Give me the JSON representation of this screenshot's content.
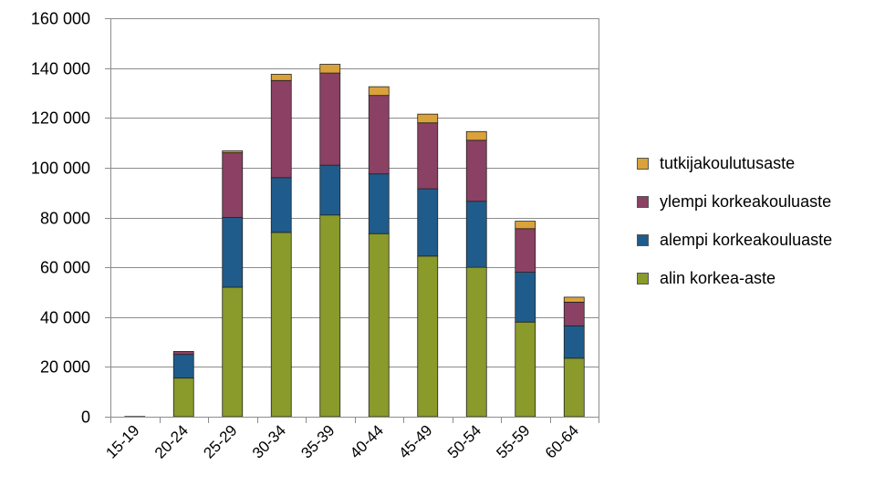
{
  "chart_data": {
    "type": "bar",
    "stacked": true,
    "categories": [
      "15-19",
      "20-24",
      "25-29",
      "30-34",
      "35-39",
      "40-44",
      "45-49",
      "50-54",
      "55-59",
      "60-64"
    ],
    "series": [
      {
        "name": "alin korkea-aste",
        "color": "#8a9a2b",
        "values": [
          100,
          15500,
          52000,
          74000,
          81000,
          73500,
          64500,
          60000,
          38000,
          23500
        ]
      },
      {
        "name": "alempi korkeakouluaste",
        "color": "#1f5c8c",
        "values": [
          0,
          9500,
          28000,
          22000,
          20000,
          24000,
          27000,
          26500,
          20000,
          13000
        ]
      },
      {
        "name": "ylempi korkeakouluaste",
        "color": "#8b4163",
        "values": [
          0,
          1200,
          26000,
          39000,
          37000,
          31500,
          26500,
          24500,
          17500,
          9500
        ]
      },
      {
        "name": "tutkijakoulutusaste",
        "color": "#d9a23b",
        "values": [
          0,
          0,
          800,
          2500,
          3500,
          3500,
          3500,
          3500,
          3000,
          2000
        ]
      }
    ],
    "ylim": [
      0,
      160000
    ],
    "yticks": [
      0,
      20000,
      40000,
      60000,
      80000,
      100000,
      120000,
      140000,
      160000
    ],
    "ytick_labels": [
      "0",
      "20 000",
      "40 000",
      "60 000",
      "80 000",
      "100 000",
      "120 000",
      "140 000",
      "160 000"
    ],
    "grid": true,
    "legend_position": "right",
    "title": "",
    "xlabel": "",
    "ylabel": ""
  },
  "legend": {
    "items": [
      {
        "label": "tutkijakoulutusaste",
        "color": "#d9a23b"
      },
      {
        "label": "ylempi korkeakouluaste",
        "color": "#8b4163"
      },
      {
        "label": "alempi korkeakouluaste",
        "color": "#1f5c8c"
      },
      {
        "label": "alin korkea-aste",
        "color": "#8a9a2b"
      }
    ]
  }
}
